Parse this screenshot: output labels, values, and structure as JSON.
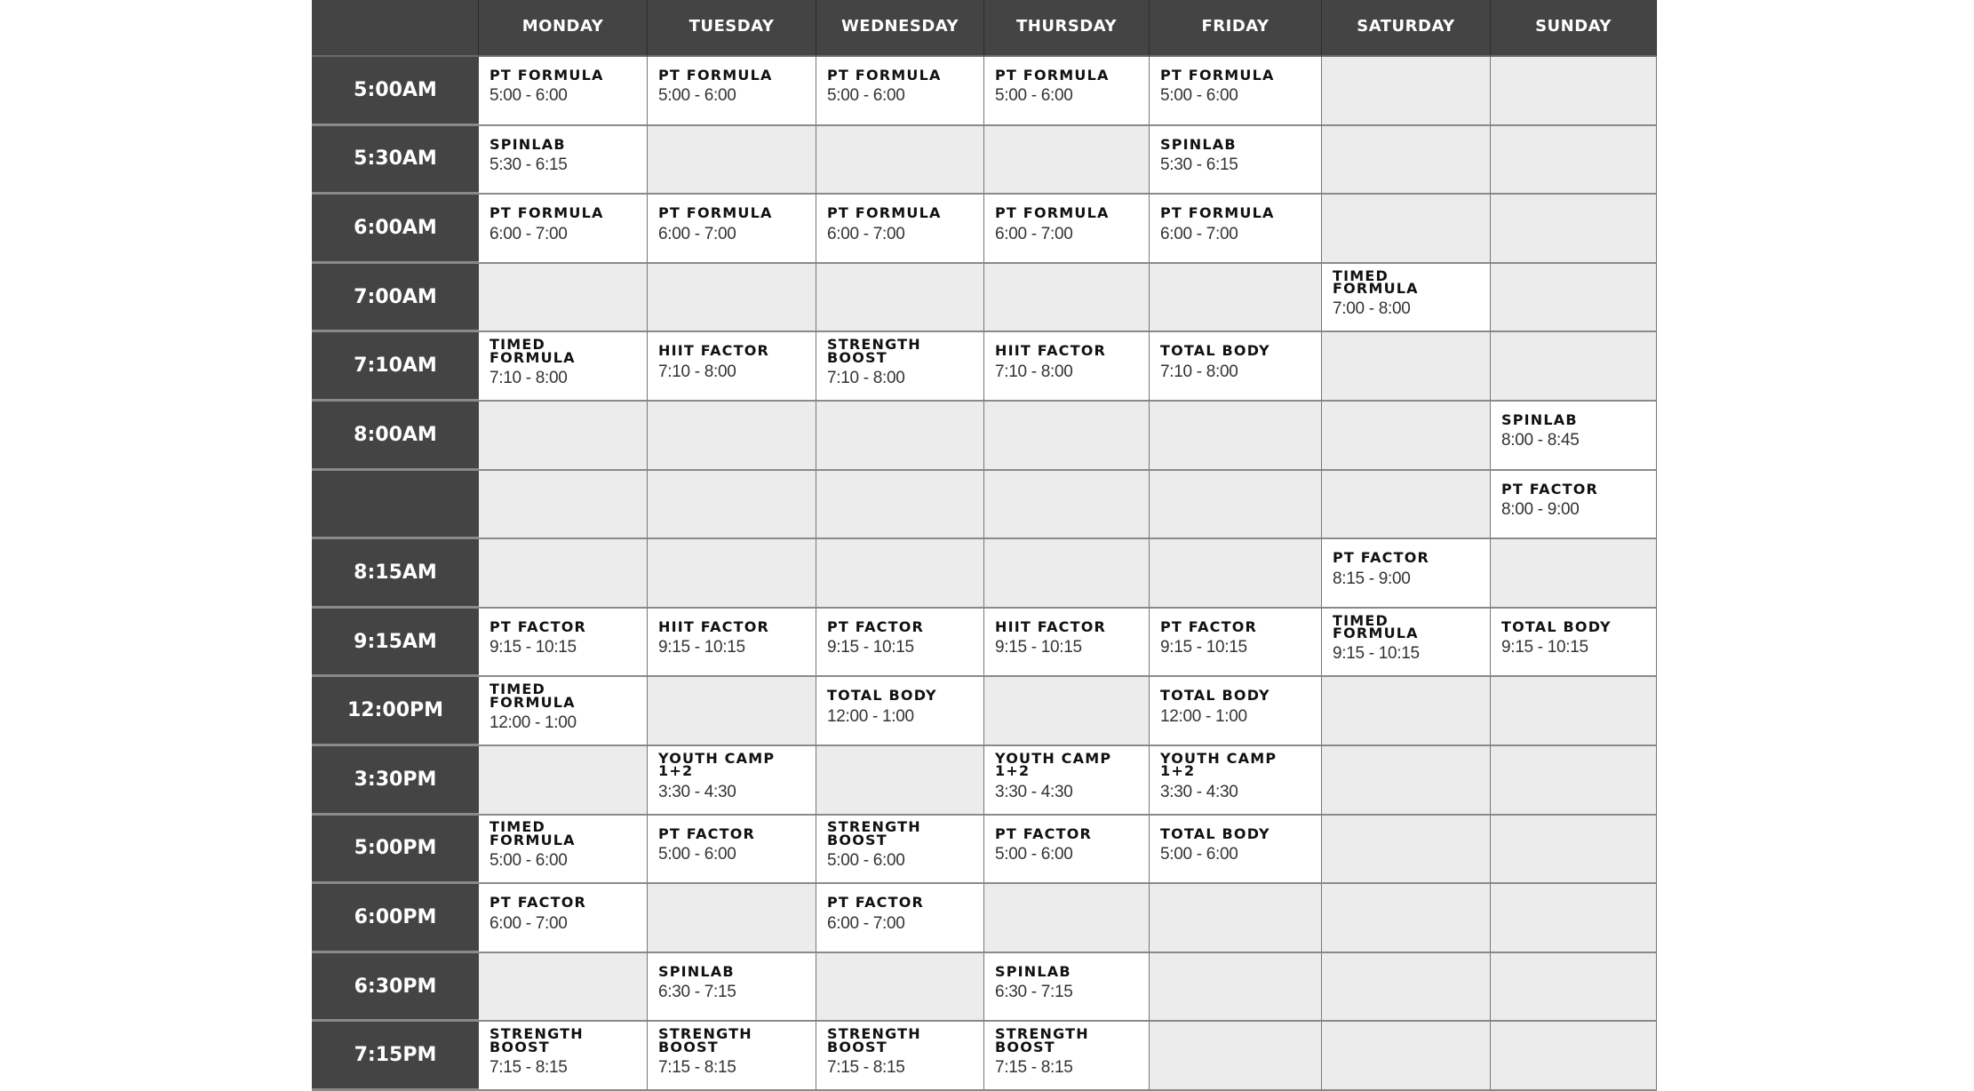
{
  "colors": {
    "header_bg": "#444444",
    "empty_cell": "#ececec",
    "filled_cell": "#ffffff",
    "grid_line": "#7a7a7a"
  },
  "days": [
    "MONDAY",
    "TUESDAY",
    "WEDNESDAY",
    "THURSDAY",
    "FRIDAY",
    "SATURDAY",
    "SUNDAY"
  ],
  "rows": [
    {
      "time": "5:00AM",
      "cells": [
        {
          "name": "PT FORMULA",
          "time": "5:00 - 6:00"
        },
        {
          "name": "PT FORMULA",
          "time": "5:00 - 6:00"
        },
        {
          "name": "PT FORMULA",
          "time": "5:00 - 6:00"
        },
        {
          "name": "PT FORMULA",
          "time": "5:00 - 6:00"
        },
        {
          "name": "PT FORMULA",
          "time": "5:00 - 6:00"
        },
        null,
        null
      ]
    },
    {
      "time": "5:30AM",
      "cells": [
        {
          "name": "SPINLAB",
          "time": "5:30 - 6:15"
        },
        null,
        null,
        null,
        {
          "name": "SPINLAB",
          "time": "5:30 - 6:15"
        },
        null,
        null
      ]
    },
    {
      "time": "6:00AM",
      "cells": [
        {
          "name": "PT FORMULA",
          "time": "6:00 - 7:00"
        },
        {
          "name": "PT FORMULA",
          "time": "6:00 - 7:00"
        },
        {
          "name": "PT FORMULA",
          "time": "6:00 - 7:00"
        },
        {
          "name": "PT FORMULA",
          "time": "6:00 - 7:00"
        },
        {
          "name": "PT FORMULA",
          "time": "6:00 - 7:00"
        },
        null,
        null
      ]
    },
    {
      "time": "7:00AM",
      "cells": [
        null,
        null,
        null,
        null,
        null,
        {
          "name": "TIMED FORMULA",
          "time": "7:00 - 8:00"
        },
        null
      ]
    },
    {
      "time": "7:10AM",
      "cells": [
        {
          "name": "TIMED FORMULA",
          "time": "7:10 - 8:00"
        },
        {
          "name": "HIIT FACTOR",
          "time": "7:10 - 8:00"
        },
        {
          "name": "STRENGTH BOOST",
          "time": "7:10 - 8:00"
        },
        {
          "name": "HIIT FACTOR",
          "time": "7:10 - 8:00"
        },
        {
          "name": "TOTAL BODY",
          "time": "7:10 - 8:00"
        },
        null,
        null
      ]
    },
    {
      "time": "8:00AM",
      "cells": [
        null,
        null,
        null,
        null,
        null,
        null,
        {
          "name": "SPINLAB",
          "time": "8:00 - 8:45"
        }
      ]
    },
    {
      "time": "",
      "cells": [
        null,
        null,
        null,
        null,
        null,
        null,
        {
          "name": "PT FACTOR",
          "time": "8:00 - 9:00"
        }
      ]
    },
    {
      "time": "8:15AM",
      "cells": [
        null,
        null,
        null,
        null,
        null,
        {
          "name": "PT FACTOR",
          "time": "8:15 - 9:00"
        },
        null
      ]
    },
    {
      "time": "9:15AM",
      "cells": [
        {
          "name": "PT FACTOR",
          "time": "9:15 - 10:15"
        },
        {
          "name": "HIIT FACTOR",
          "time": "9:15 - 10:15"
        },
        {
          "name": "PT FACTOR",
          "time": "9:15 - 10:15"
        },
        {
          "name": "HIIT FACTOR",
          "time": "9:15 - 10:15"
        },
        {
          "name": "PT FACTOR",
          "time": "9:15 - 10:15"
        },
        {
          "name": "TIMED FORMULA",
          "time": "9:15 - 10:15"
        },
        {
          "name": "TOTAL BODY",
          "time": "9:15 - 10:15"
        }
      ]
    },
    {
      "time": "12:00PM",
      "cells": [
        {
          "name": "TIMED FORMULA",
          "time": "12:00 - 1:00"
        },
        null,
        {
          "name": "TOTAL BODY",
          "time": "12:00 - 1:00"
        },
        null,
        {
          "name": "TOTAL BODY",
          "time": "12:00 - 1:00"
        },
        null,
        null
      ]
    },
    {
      "time": "3:30PM",
      "cells": [
        null,
        {
          "name": "YOUTH CAMP 1+2",
          "time": "3:30 - 4:30"
        },
        null,
        {
          "name": "YOUTH CAMP 1+2",
          "time": "3:30 - 4:30"
        },
        {
          "name": "YOUTH CAMP 1+2",
          "time": "3:30 - 4:30"
        },
        null,
        null
      ]
    },
    {
      "time": "5:00PM",
      "cells": [
        {
          "name": "TIMED FORMULA",
          "time": "5:00 - 6:00"
        },
        {
          "name": "PT FACTOR",
          "time": "5:00 - 6:00"
        },
        {
          "name": "STRENGTH BOOST",
          "time": "5:00 - 6:00"
        },
        {
          "name": "PT FACTOR",
          "time": "5:00 - 6:00"
        },
        {
          "name": "TOTAL BODY",
          "time": "5:00 - 6:00"
        },
        null,
        null
      ]
    },
    {
      "time": "6:00PM",
      "cells": [
        {
          "name": "PT FACTOR",
          "time": "6:00 - 7:00"
        },
        null,
        {
          "name": "PT FACTOR",
          "time": "6:00 - 7:00"
        },
        null,
        null,
        null,
        null
      ]
    },
    {
      "time": "6:30PM",
      "cells": [
        null,
        {
          "name": "SPINLAB",
          "time": "6:30 - 7:15"
        },
        null,
        {
          "name": "SPINLAB",
          "time": "6:30 - 7:15"
        },
        null,
        null,
        null
      ]
    },
    {
      "time": "7:15PM",
      "cells": [
        {
          "name": "STRENGTH BOOST",
          "time": "7:15 - 8:15"
        },
        {
          "name": "STRENGTH BOOST",
          "time": "7:15 - 8:15"
        },
        {
          "name": "STRENGTH BOOST",
          "time": "7:15 - 8:15"
        },
        {
          "name": "STRENGTH BOOST",
          "time": "7:15 - 8:15"
        },
        null,
        null,
        null
      ]
    }
  ]
}
